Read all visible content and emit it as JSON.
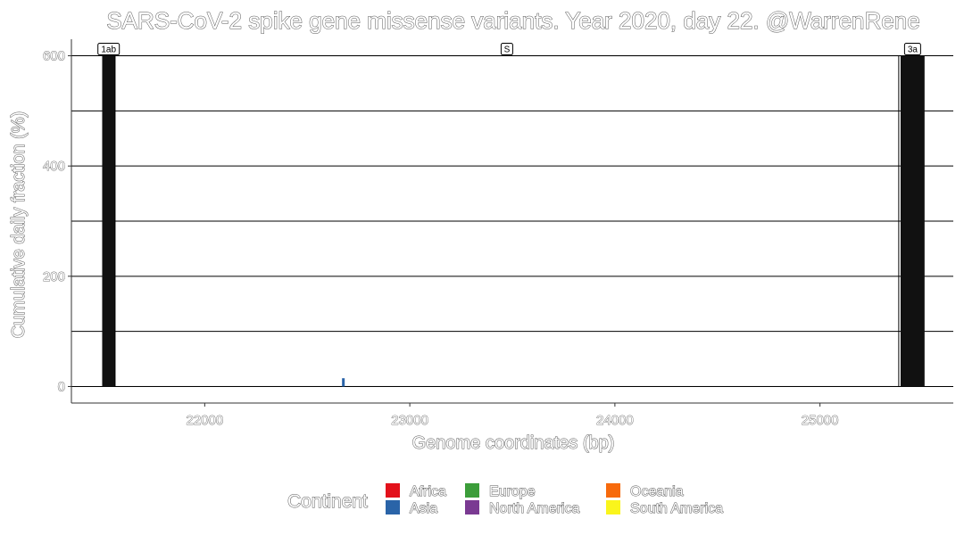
{
  "chart_data": {
    "type": "bar",
    "title": "SARS-CoV-2 spike gene missense variants. Year 2020, day 22. @WarrenRene",
    "xlabel": "Genome coordinates (bp)",
    "ylabel": "Cumulative daily fraction (%)",
    "xlim": [
      21350,
      25650
    ],
    "ylim": [
      -30,
      630
    ],
    "x_ticks": [
      22000,
      23000,
      24000,
      25000
    ],
    "y_ticks": [
      0,
      200,
      400,
      600
    ],
    "y_minor_gridlines": [
      100,
      300,
      500
    ],
    "grid": "horizontal",
    "gene_markers": [
      {
        "label": "1ab",
        "x_start": 21500,
        "x_end": 21563,
        "height": 600
      },
      {
        "label": "S",
        "x_start": 21563,
        "x_end": 25384,
        "height": 600,
        "outline_only": true
      },
      {
        "label": "3a",
        "x_start": 25393,
        "x_end": 25510,
        "height": 600
      }
    ],
    "series": [
      {
        "name": "Asia",
        "color": "#2a64a8",
        "points": [
          {
            "x": 22676,
            "y": 15
          }
        ]
      }
    ],
    "legend": {
      "title": "Continent",
      "position": "bottom",
      "entries": [
        {
          "name": "Africa",
          "color": "#e3111b"
        },
        {
          "name": "Asia",
          "color": "#2a64a8"
        },
        {
          "name": "Europe",
          "color": "#3c9d3a"
        },
        {
          "name": "North America",
          "color": "#7a3a92"
        },
        {
          "name": "Oceania",
          "color": "#f76a0c"
        },
        {
          "name": "South America",
          "color": "#faf51c"
        }
      ]
    }
  }
}
